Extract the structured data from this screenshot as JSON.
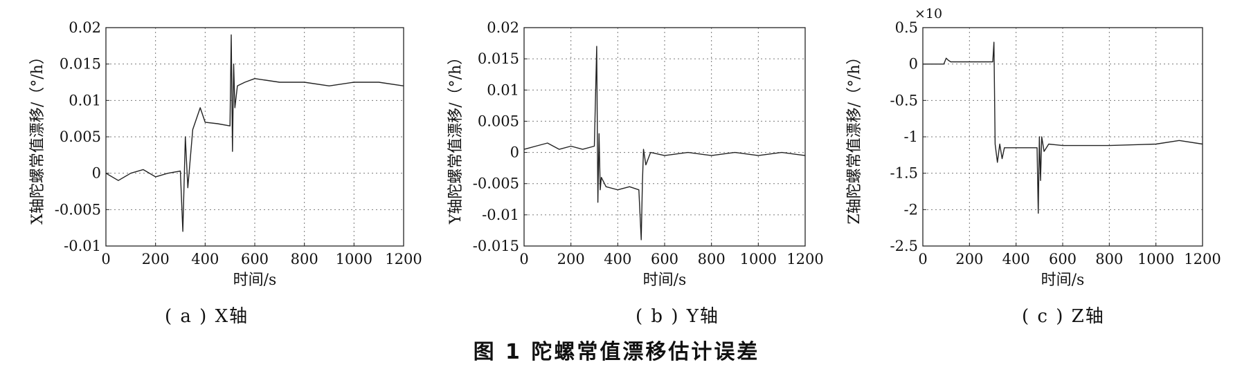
{
  "figure_title": "图 1  陀螺常值漂移估计误差",
  "panels": [
    {
      "caption": "( a ) X轴"
    },
    {
      "caption": "( b ) Y轴"
    },
    {
      "caption": "( c ) Z轴"
    }
  ],
  "chart_data": [
    {
      "type": "line",
      "xlabel": "时间/s",
      "ylabel": "X轴陀螺常值漂移/（°/h）",
      "xlim": [
        0,
        1200
      ],
      "ylim": [
        -0.01,
        0.02
      ],
      "xticks": [
        "0",
        "200",
        "400",
        "600",
        "800",
        "1000",
        "1200"
      ],
      "yticks": [
        "0.02",
        "0.015",
        "0.01",
        "0.005",
        "0",
        "-0.005",
        "-0.01"
      ],
      "grid": true,
      "color": "#222222",
      "x": [
        0,
        50,
        100,
        150,
        200,
        250,
        300,
        310,
        320,
        330,
        350,
        380,
        400,
        450,
        500,
        505,
        510,
        515,
        520,
        530,
        560,
        600,
        700,
        800,
        900,
        1000,
        1100,
        1200
      ],
      "values": [
        0,
        -0.001,
        0,
        0.0005,
        -0.0005,
        0,
        0.0003,
        -0.008,
        0.005,
        -0.002,
        0.006,
        0.009,
        0.007,
        0.0068,
        0.0065,
        0.019,
        0.003,
        0.015,
        0.009,
        0.012,
        0.0125,
        0.013,
        0.0125,
        0.0125,
        0.012,
        0.0125,
        0.0125,
        0.012
      ]
    },
    {
      "type": "line",
      "xlabel": "时间/s",
      "ylabel": "Y轴陀螺常值漂移/（°/h）",
      "xlim": [
        0,
        1200
      ],
      "ylim": [
        -0.015,
        0.02
      ],
      "xticks": [
        "0",
        "200",
        "400",
        "600",
        "800",
        "1000",
        "1200"
      ],
      "yticks": [
        "0.02",
        "0.015",
        "0.01",
        "0.005",
        "0",
        "-0.005",
        "-0.01",
        "-0.015"
      ],
      "grid": true,
      "color": "#222222",
      "x": [
        0,
        50,
        100,
        150,
        200,
        250,
        300,
        310,
        315,
        320,
        325,
        330,
        350,
        400,
        450,
        490,
        500,
        505,
        510,
        520,
        540,
        600,
        700,
        800,
        900,
        1000,
        1100,
        1200
      ],
      "values": [
        0.0005,
        0.001,
        0.0015,
        0.0005,
        0.001,
        0.0005,
        0.001,
        0.017,
        -0.008,
        0.003,
        -0.006,
        -0.004,
        -0.0055,
        -0.006,
        -0.0055,
        -0.006,
        -0.014,
        -0.005,
        0.0005,
        -0.002,
        0,
        -0.0005,
        0,
        -0.0005,
        0,
        -0.0005,
        0,
        -0.0005
      ]
    },
    {
      "type": "line",
      "xlabel": "时间/s",
      "ylabel": "Z轴陀螺常值漂移/（°/h）",
      "exponent_label": "×10",
      "xlim": [
        0,
        1200
      ],
      "ylim": [
        -2.5,
        0.5
      ],
      "xticks": [
        "0",
        "200",
        "400",
        "600",
        "800",
        "1000",
        "1200"
      ],
      "yticks": [
        "0.5",
        "0",
        "-0.5",
        "-1",
        "-1.5",
        "-2",
        "-2.5"
      ],
      "grid": true,
      "color": "#222222",
      "x": [
        0,
        90,
        100,
        110,
        120,
        200,
        300,
        305,
        310,
        320,
        330,
        340,
        350,
        400,
        460,
        490,
        495,
        500,
        505,
        510,
        520,
        540,
        600,
        800,
        1000,
        1100,
        1200
      ],
      "values": [
        0,
        0,
        0.08,
        0.05,
        0.03,
        0.03,
        0.03,
        0.3,
        -1.1,
        -1.35,
        -1.1,
        -1.3,
        -1.15,
        -1.15,
        -1.15,
        -1.15,
        -2.05,
        -1.0,
        -1.6,
        -1.0,
        -1.2,
        -1.1,
        -1.12,
        -1.12,
        -1.1,
        -1.05,
        -1.1
      ]
    }
  ]
}
